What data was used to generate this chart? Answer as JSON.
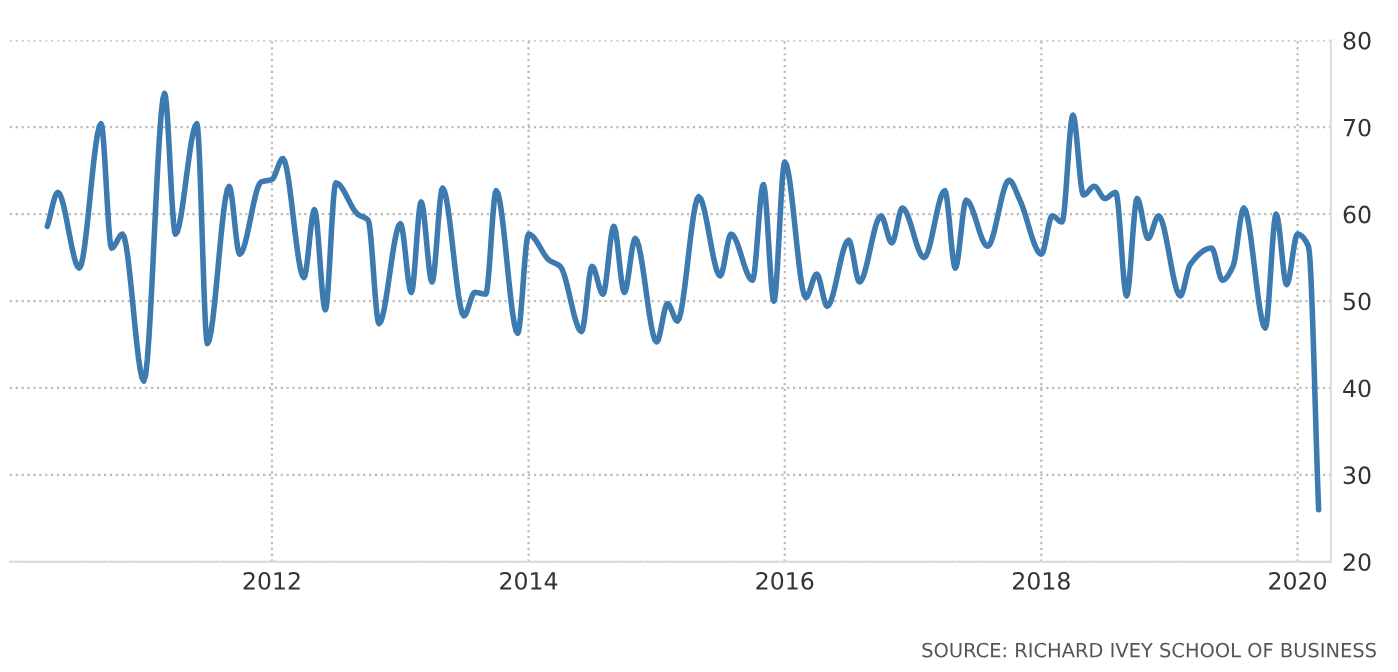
{
  "chart_data": {
    "type": "line",
    "x": [
      "2010-04",
      "2010-05",
      "2010-07",
      "2010-09",
      "2010-10",
      "2010-11",
      "2011-01",
      "2011-03",
      "2011-04",
      "2011-06",
      "2011-07",
      "2011-09",
      "2011-10",
      "2011-12",
      "2012-01",
      "2012-02",
      "2012-04",
      "2012-05",
      "2012-06",
      "2012-07",
      "2012-09",
      "2012-10",
      "2012-11",
      "2013-01",
      "2013-02",
      "2013-03",
      "2013-04",
      "2013-05",
      "2013-07",
      "2013-08",
      "2013-09",
      "2013-10",
      "2013-12",
      "2014-01",
      "2014-03",
      "2014-04",
      "2014-06",
      "2014-07",
      "2014-08",
      "2014-09",
      "2014-10",
      "2014-11",
      "2015-01",
      "2015-02",
      "2015-03",
      "2015-05",
      "2015-07",
      "2015-08",
      "2015-10",
      "2015-11",
      "2015-12",
      "2016-01",
      "2016-03",
      "2016-04",
      "2016-05",
      "2016-07",
      "2016-08",
      "2016-10",
      "2016-11",
      "2016-12",
      "2017-02",
      "2017-04",
      "2017-05",
      "2017-06",
      "2017-08",
      "2017-10",
      "2017-11",
      "2018-01",
      "2018-02",
      "2018-03",
      "2018-04",
      "2018-05",
      "2018-06",
      "2018-07",
      "2018-08",
      "2018-09",
      "2018-10",
      "2018-11",
      "2018-12",
      "2019-02",
      "2019-03",
      "2019-05",
      "2019-06",
      "2019-07",
      "2019-08",
      "2019-10",
      "2019-11",
      "2019-12",
      "2020-01",
      "2020-02",
      "2020-03"
    ],
    "series": [
      {
        "color": "#3d7ab0",
        "values": [
          58.6,
          62.5,
          53.8,
          70.4,
          56.1,
          57.7,
          40.8,
          73.9,
          57.7,
          70.4,
          45.1,
          63.2,
          55.4,
          63.7,
          64,
          66.4,
          52.7,
          60.5,
          49,
          63.6,
          60,
          59.3,
          47.4,
          58.9,
          51,
          61.4,
          52.2,
          63,
          48.3,
          51,
          50.8,
          62.7,
          46.3,
          57.7,
          54.7,
          54,
          46.5,
          54,
          50.8,
          58.6,
          51,
          57.2,
          45.3,
          49.7,
          47.7,
          62,
          52.9,
          57.7,
          52.4,
          63.4,
          50,
          66,
          50.4,
          53.1,
          49.4,
          57,
          52.2,
          59.8,
          56.7,
          60.7,
          55,
          62.7,
          53.8,
          61.6,
          56.3,
          63.9,
          61.6,
          55.4,
          59.8,
          59.1,
          71.4,
          62.2,
          63.2,
          61.8,
          62.5,
          50.6,
          61.8,
          57.2,
          59.8,
          50.6,
          54.2,
          56.1,
          52.4,
          54,
          60.7,
          46.9,
          60,
          51.9,
          57.7,
          56.3,
          26
        ]
      }
    ],
    "xlim": [
      "2009-12-15",
      "2020-04-05"
    ],
    "xticks": [
      "2012",
      "2014",
      "2016",
      "2018",
      "2020"
    ],
    "ylim": [
      20,
      80
    ],
    "yticks": [
      20,
      30,
      40,
      50,
      60,
      70,
      80
    ],
    "grid": true,
    "line_style": "solid",
    "annotations": [
      "SOURCE: RICHARD IVEY SCHOOL OF BUSINESS"
    ]
  }
}
